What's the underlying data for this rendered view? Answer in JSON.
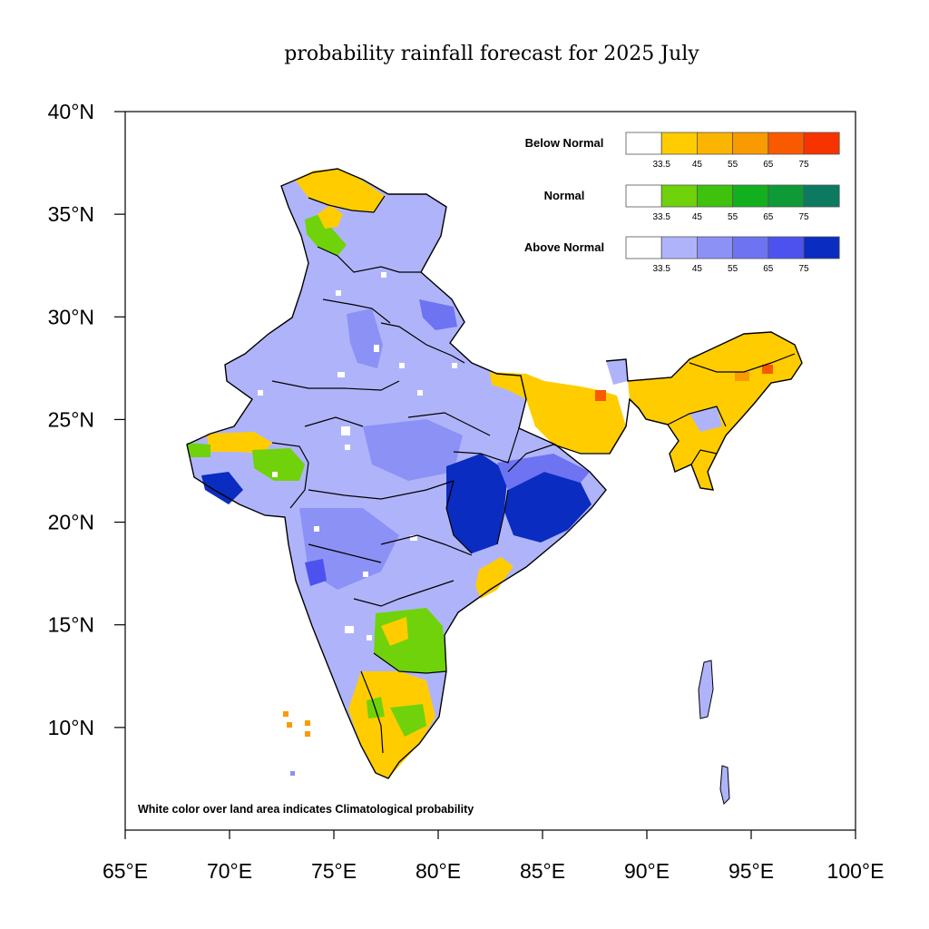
{
  "title": "probability rainfall forecast for 2025 July",
  "note": "White color over land area indicates Climatological probability",
  "axes": {
    "x_range": [
      65,
      100
    ],
    "y_range": [
      5,
      40
    ],
    "x_ticks": [
      "65°E",
      "70°E",
      "75°E",
      "80°E",
      "85°E",
      "90°E",
      "95°E",
      "100°E"
    ],
    "y_ticks": [
      "10°N",
      "15°N",
      "20°N",
      "25°N",
      "30°N",
      "35°N",
      "40°N"
    ]
  },
  "legend": {
    "tick_labels": [
      "33.5",
      "45",
      "55",
      "65",
      "75"
    ],
    "categories": [
      {
        "name": "Below Normal",
        "colors": [
          "#ffffff",
          "#ffcc00",
          "#fbb400",
          "#f99b00",
          "#f95a00",
          "#f73300"
        ]
      },
      {
        "name": "Normal",
        "colors": [
          "#ffffff",
          "#6fd20a",
          "#3fc20e",
          "#12b01e",
          "#0e9a37",
          "#0b7a60"
        ]
      },
      {
        "name": "Above Normal",
        "colors": [
          "#ffffff",
          "#afb4fa",
          "#8c91f6",
          "#6e73f2",
          "#4d52ef",
          "#0a2cc0"
        ]
      }
    ]
  }
}
